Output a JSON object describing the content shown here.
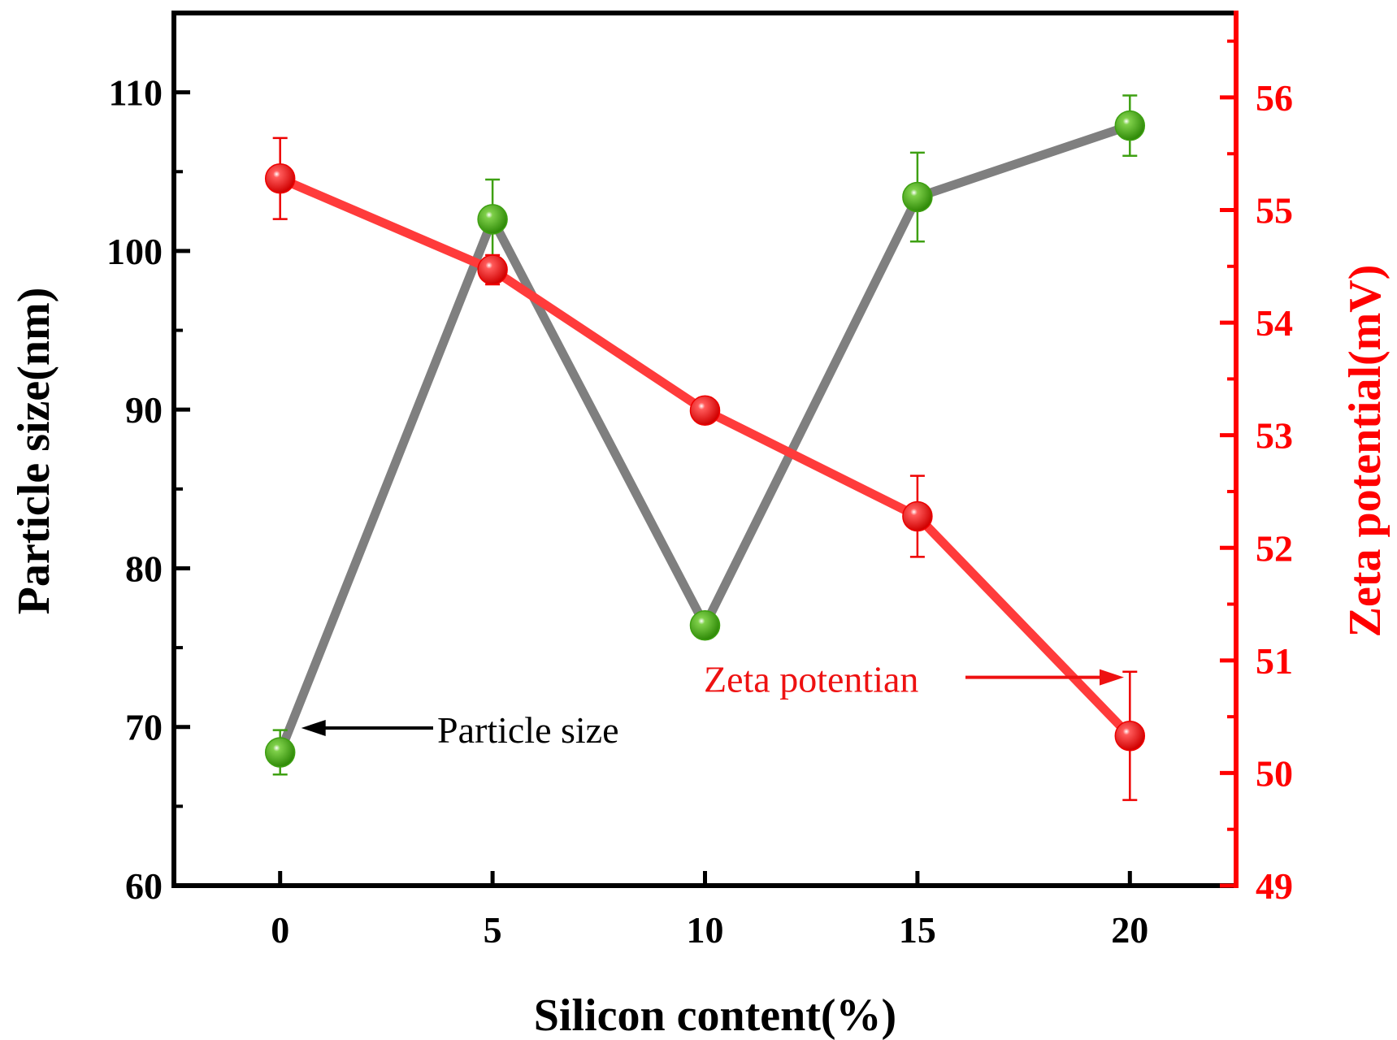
{
  "chart_data": {
    "type": "line",
    "title": "",
    "xlabel": "Silicon content(%)",
    "ylabel": "Particle size(nm)",
    "y2label": "Zeta potential(mV)",
    "x": [
      0,
      5,
      10,
      15,
      20
    ],
    "xlim": [
      -2.5,
      22.5
    ],
    "ylim": [
      60,
      115
    ],
    "y2lim": [
      49,
      56.75
    ],
    "xticks": [
      0,
      5,
      10,
      15,
      20
    ],
    "yticks": [
      60,
      70,
      80,
      90,
      100,
      110
    ],
    "y2ticks": [
      49,
      50,
      51,
      52,
      53,
      54,
      55,
      56
    ],
    "series": [
      {
        "name": "Particle size",
        "axis": "left",
        "values": [
          68.4,
          102.0,
          76.4,
          103.4,
          107.9
        ],
        "errors": [
          1.4,
          2.5,
          0.3,
          2.8,
          1.9
        ],
        "line_color": "#7f7f7f",
        "marker_color": "#3ea012",
        "errorbar_color": "#3ea012"
      },
      {
        "name": "Zeta potentian",
        "axis": "right",
        "values": [
          55.28,
          54.47,
          53.22,
          52.28,
          50.33
        ],
        "errors": [
          0.36,
          0.13,
          0.07,
          0.36,
          0.57
        ],
        "line_color": "#ff3b3b",
        "marker_color": "#ee0000",
        "errorbar_color": "#ee0000"
      }
    ],
    "annotations": [
      {
        "text": "Particle size",
        "series": "Particle size",
        "point_index": 0
      },
      {
        "text": "Zeta potentian",
        "series": "Zeta potentian",
        "point_index": 4
      }
    ],
    "colors": {
      "left_axis": "#000000",
      "right_axis": "#ff0000",
      "annotation_particle": "#000000",
      "annotation_zeta": "#ee1111"
    }
  }
}
